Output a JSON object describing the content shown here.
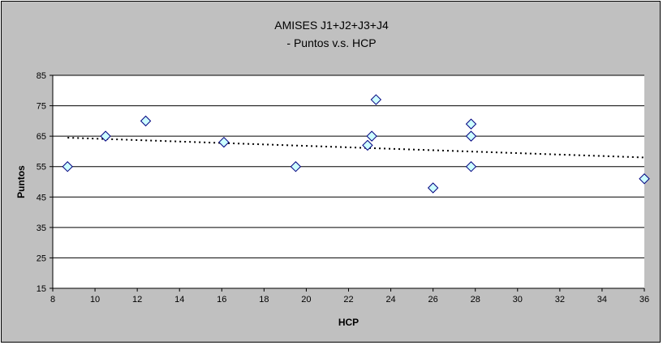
{
  "chart_data": {
    "type": "scatter",
    "title_lines": [
      "AMISES J1+J2+J3+J4",
      "- Puntos v.s. HCP"
    ],
    "xlabel": "HCP",
    "ylabel": "Puntos",
    "xlim": [
      8,
      36
    ],
    "ylim": [
      15,
      85
    ],
    "x_ticks": [
      8,
      10,
      12,
      14,
      16,
      18,
      20,
      22,
      24,
      26,
      28,
      30,
      32,
      34,
      36
    ],
    "y_ticks": [
      15,
      25,
      35,
      45,
      55,
      65,
      75,
      85
    ],
    "grid": "horizontal",
    "legend": "none",
    "series": [
      {
        "points": [
          {
            "x": 8.7,
            "y": 55
          },
          {
            "x": 10.5,
            "y": 65
          },
          {
            "x": 12.4,
            "y": 70
          },
          {
            "x": 16.1,
            "y": 63
          },
          {
            "x": 19.5,
            "y": 55
          },
          {
            "x": 22.9,
            "y": 62
          },
          {
            "x": 23.1,
            "y": 65
          },
          {
            "x": 23.3,
            "y": 77
          },
          {
            "x": 26.0,
            "y": 48
          },
          {
            "x": 27.8,
            "y": 69
          },
          {
            "x": 27.8,
            "y": 65
          },
          {
            "x": 27.8,
            "y": 55
          },
          {
            "x": 36.0,
            "y": 51
          }
        ]
      }
    ],
    "trendline": {
      "type": "linear",
      "from": {
        "x": 8.7,
        "y": 64.5
      },
      "to": {
        "x": 36.0,
        "y": 58.0
      }
    },
    "colors": {
      "chart_area": "#c0c0c0",
      "plot_area": "#ffffff",
      "marker_fill": "#ccffff",
      "marker_stroke": "#000080",
      "gridline": "#000000",
      "trendline": "#000000"
    }
  }
}
